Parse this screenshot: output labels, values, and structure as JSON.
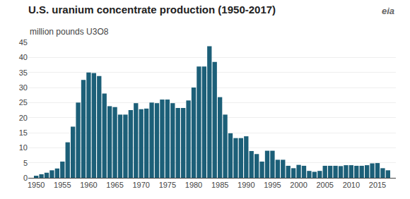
{
  "chart_data": {
    "type": "bar",
    "title": "U.S. uranium concentrate production (1950-2017)",
    "subtitle": "million pounds U3O8",
    "annotations": [
      {
        "text": "eia"
      }
    ],
    "x": [
      1950,
      1951,
      1952,
      1953,
      1954,
      1955,
      1956,
      1957,
      1958,
      1959,
      1960,
      1961,
      1962,
      1963,
      1964,
      1965,
      1966,
      1967,
      1968,
      1969,
      1970,
      1971,
      1972,
      1973,
      1974,
      1975,
      1976,
      1977,
      1978,
      1979,
      1980,
      1981,
      1982,
      1983,
      1984,
      1985,
      1986,
      1987,
      1988,
      1989,
      1990,
      1991,
      1992,
      1993,
      1994,
      1995,
      1996,
      1997,
      1998,
      1999,
      2000,
      2001,
      2002,
      2003,
      2004,
      2005,
      2006,
      2007,
      2008,
      2009,
      2010,
      2011,
      2012,
      2013,
      2014,
      2015,
      2016,
      2017
    ],
    "values": [
      0.7,
      1.2,
      1.7,
      2.5,
      3.1,
      5.4,
      11.8,
      17.0,
      25.0,
      32.5,
      35.0,
      34.8,
      33.8,
      28.0,
      23.8,
      23.5,
      21.0,
      21.0,
      22.5,
      24.8,
      22.8,
      23.0,
      25.0,
      24.8,
      26.0,
      26.0,
      24.8,
      23.2,
      23.2,
      25.7,
      30.0,
      37.0,
      37.0,
      43.7,
      38.5,
      26.8,
      21.0,
      14.8,
      13.2,
      13.2,
      13.8,
      8.9,
      7.9,
      5.4,
      9.0,
      9.0,
      6.0,
      6.0,
      4.0,
      3.2,
      4.3,
      4.0,
      2.3,
      2.0,
      2.3,
      4.0,
      4.0,
      4.0,
      3.9,
      4.2,
      4.2,
      4.0,
      4.0,
      4.2,
      4.8,
      4.9,
      3.2,
      2.5
    ],
    "color": "#1c5f78",
    "xlim": [
      1948.5,
      2018.5
    ],
    "xticks": [
      1950,
      1955,
      1960,
      1965,
      1970,
      1975,
      1980,
      1985,
      1990,
      1995,
      2000,
      2005,
      2010,
      2015
    ],
    "ylim": [
      0,
      45
    ],
    "yticks": [
      0,
      5,
      10,
      15,
      20,
      25,
      30,
      35,
      40,
      45
    ],
    "grid": true
  }
}
